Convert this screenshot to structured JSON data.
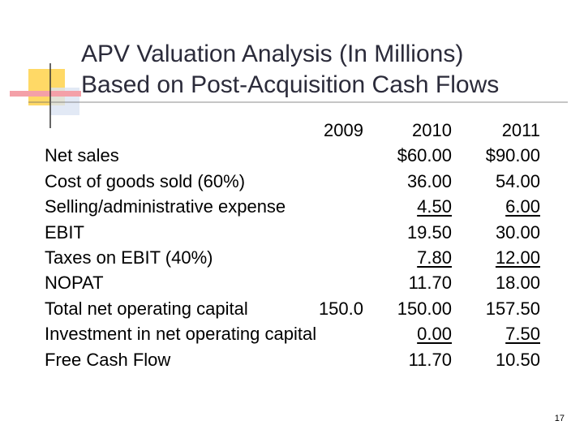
{
  "slide": {
    "title": [
      "APV Valuation Analysis (In Millions)",
      "Based on Post-Acquisition Cash Flows"
    ],
    "table": {
      "columns": [
        "2009",
        "2010",
        "2011"
      ],
      "rows": [
        {
          "label": "Net sales",
          "values": [
            null,
            "$60.00",
            "$90.00"
          ],
          "underline": false
        },
        {
          "label": "Cost of goods sold (60%)",
          "values": [
            null,
            "36.00",
            "54.00"
          ],
          "underline": false
        },
        {
          "label": "Selling/administrative expense",
          "values": [
            null,
            "4.50",
            "6.00"
          ],
          "underline": true
        },
        {
          "label": "EBIT",
          "values": [
            null,
            "19.50",
            "30.00"
          ],
          "underline": false
        },
        {
          "label": "Taxes on EBIT (40%)",
          "values": [
            null,
            "7.80",
            "12.00"
          ],
          "underline": true
        },
        {
          "label": "NOPAT",
          "values": [
            null,
            "11.70",
            "18.00"
          ],
          "underline": false
        },
        {
          "label": "Total net operating capital",
          "values": [
            "150.0",
            "150.00",
            "157.50"
          ],
          "underline": false
        },
        {
          "label": "Investment in net operating capital",
          "values": [
            null,
            "0.00",
            "7.50"
          ],
          "underline": true
        },
        {
          "label": "Free Cash Flow",
          "values": [
            null,
            "11.70",
            "10.50"
          ],
          "underline": false
        }
      ]
    },
    "page_number": "17"
  }
}
